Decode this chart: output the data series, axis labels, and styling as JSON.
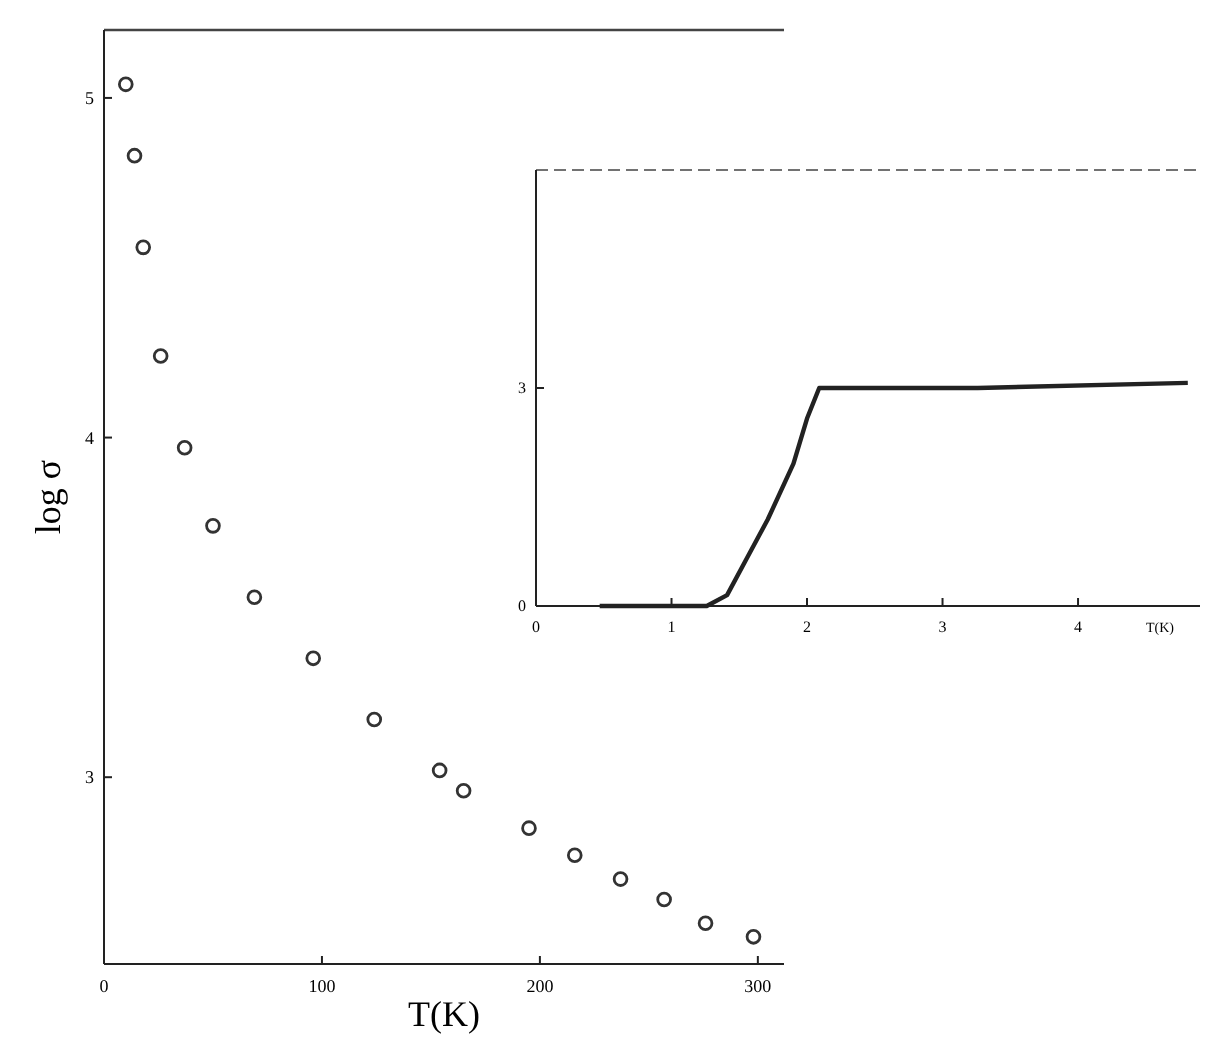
{
  "chart_data": [
    {
      "type": "scatter",
      "xlabel": "T(K)",
      "ylabel": "log σ",
      "marker": "circle",
      "xlim": [
        0,
        312
      ],
      "ylim": [
        2.45,
        5.2
      ],
      "xticks": [
        0,
        100,
        200,
        300
      ],
      "yticks": [
        3,
        4,
        5
      ],
      "series": [
        {
          "color": "#333333",
          "x": [
            10,
            14,
            18,
            26,
            37,
            50,
            69,
            96,
            124,
            154,
            165,
            195,
            216,
            237,
            257,
            276,
            298
          ],
          "values": [
            5.04,
            4.83,
            4.56,
            4.24,
            3.97,
            3.74,
            3.53,
            3.35,
            3.17,
            3.02,
            2.96,
            2.85,
            2.77,
            2.7,
            2.64,
            2.57,
            2.53
          ]
        }
      ]
    },
    {
      "type": "line",
      "xlabel": "T(K)",
      "xlim": [
        0,
        4.9
      ],
      "ylim": [
        0,
        6
      ],
      "xticks": [
        0,
        1,
        2,
        3,
        4
      ],
      "yticks": [
        0,
        3
      ],
      "series": [
        {
          "color": "#222222",
          "x": [
            0.47,
            1.26,
            1.41,
            1.56,
            1.71,
            1.9,
            2.0,
            2.09,
            3.26,
            4.81
          ],
          "values": [
            0,
            0,
            0.15,
            0.67,
            1.19,
            1.96,
            2.58,
            3.0,
            3.0,
            3.07
          ]
        }
      ]
    }
  ]
}
